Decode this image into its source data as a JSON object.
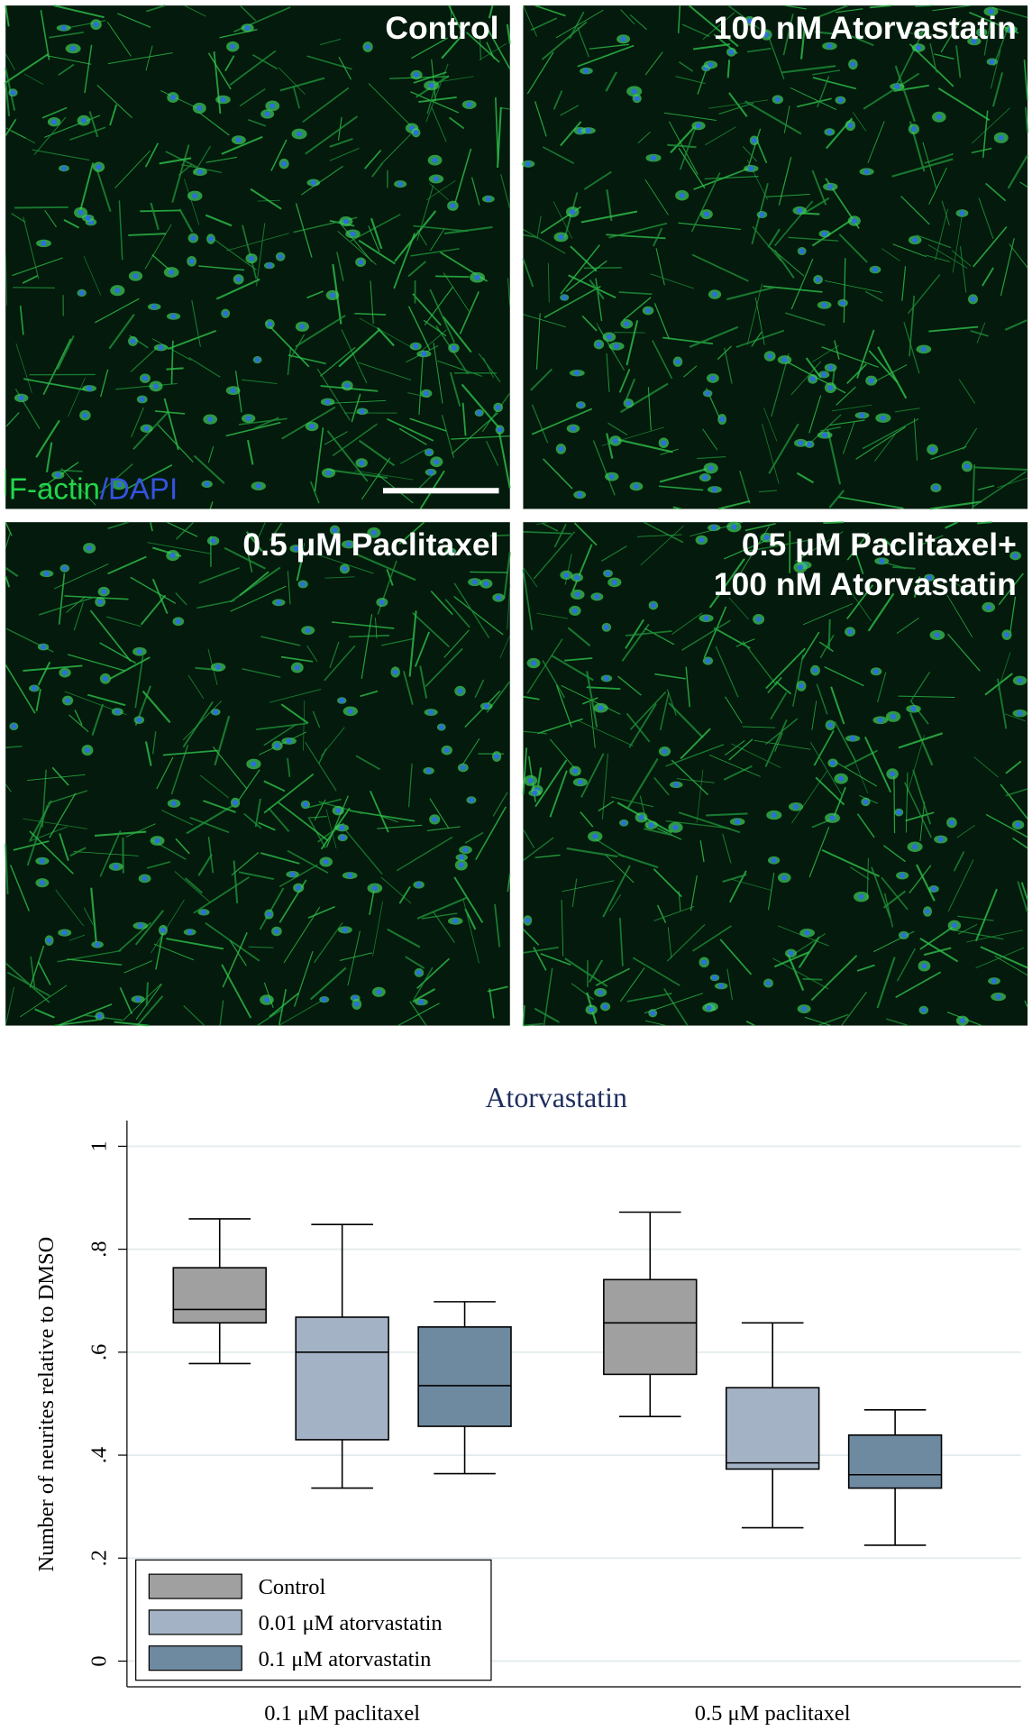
{
  "panels": [
    {
      "label": [
        "Control"
      ]
    },
    {
      "label": [
        "100 nM Atorvastatin"
      ]
    },
    {
      "label": [
        "0.5 μM Paclitaxel"
      ]
    },
    {
      "label": [
        "0.5 μM Paclitaxel+",
        "100 nM Atorvastatin"
      ]
    }
  ],
  "stain": {
    "green": "F-actin",
    "blue": "/DAPI"
  },
  "chart_data": {
    "type": "box",
    "title": "Atorvastatin",
    "ylabel": "Number of neurites relative to DMSO",
    "categories": [
      "0.1 μM paclitaxel",
      "0.5 μM paclitaxel"
    ],
    "ylim": [
      -0.05,
      1.05
    ],
    "yticks": [
      0,
      {
        "value": 0.2,
        "label": ".2"
      },
      {
        "value": 0.4,
        "label": ".4"
      },
      {
        "value": 0.6,
        "label": ".6"
      },
      {
        "value": 0.8,
        "label": ".8"
      },
      1
    ],
    "grid": true,
    "legend": "bottom-left",
    "series": [
      {
        "name": "Control",
        "color": "#a0a0a0",
        "values": [
          {
            "min": 0.578,
            "q1": 0.657,
            "median": 0.683,
            "q3": 0.764,
            "max": 0.859
          },
          {
            "min": 0.475,
            "q1": 0.557,
            "median": 0.657,
            "q3": 0.741,
            "max": 0.872
          }
        ]
      },
      {
        "name": "0.01 μM atorvastatin",
        "color": "#a3b3c5",
        "values": [
          {
            "min": 0.336,
            "q1": 0.43,
            "median": 0.6,
            "q3": 0.668,
            "max": 0.848
          },
          {
            "min": 0.259,
            "q1": 0.373,
            "median": 0.385,
            "q3": 0.531,
            "max": 0.657
          }
        ]
      },
      {
        "name": "0.1 μM atorvastatin",
        "color": "#6e8aa0",
        "values": [
          {
            "min": 0.364,
            "q1": 0.456,
            "median": 0.535,
            "q3": 0.649,
            "max": 0.698
          },
          {
            "min": 0.225,
            "q1": 0.336,
            "median": 0.362,
            "q3": 0.439,
            "max": 0.488
          }
        ]
      }
    ]
  }
}
